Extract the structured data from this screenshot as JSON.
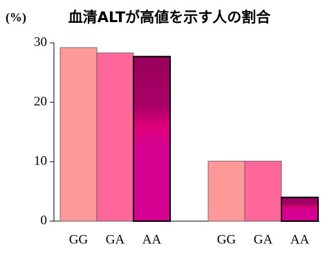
{
  "chart_data": {
    "type": "bar",
    "title": "血清ALTが高値を示す人の割合",
    "y_label": "(%)",
    "categories": [
      "GG",
      "GA",
      "AA",
      "GG",
      "GA",
      "AA"
    ],
    "values": [
      29.2,
      28.3,
      27.7,
      10.1,
      10.1,
      4.0
    ],
    "colors": [
      "#ff9999",
      "#ff6699",
      "#d4008f",
      "#ff9999",
      "#ff6699",
      "#d4008f"
    ],
    "ylim": [
      0,
      30
    ],
    "yticks": [
      0,
      10,
      20,
      30
    ],
    "grid": false
  }
}
